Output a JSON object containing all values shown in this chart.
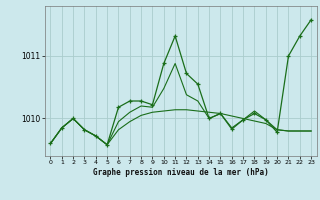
{
  "title": "Graphe pression niveau de la mer (hPa)",
  "background_color": "#cce8ec",
  "grid_color": "#aacccc",
  "line_color": "#1a6e1a",
  "xlim": [
    -0.5,
    23.5
  ],
  "ylim": [
    1009.4,
    1011.8
  ],
  "yticks": [
    1010,
    1011
  ],
  "xticks": [
    0,
    1,
    2,
    3,
    4,
    5,
    6,
    7,
    8,
    9,
    10,
    11,
    12,
    13,
    14,
    15,
    16,
    17,
    18,
    19,
    20,
    21,
    22,
    23
  ],
  "series1_x": [
    0,
    1,
    2,
    3,
    4,
    5,
    6,
    7,
    8,
    9,
    10,
    11,
    12,
    13,
    14,
    15,
    16,
    17,
    18,
    19,
    20,
    21,
    22,
    23
  ],
  "series1_y": [
    1009.6,
    1009.85,
    1010.0,
    1009.82,
    1009.72,
    1009.58,
    1010.18,
    1010.28,
    1010.28,
    1010.22,
    1010.88,
    1011.32,
    1010.72,
    1010.55,
    1010.0,
    1010.08,
    1009.83,
    1009.98,
    1010.08,
    1009.98,
    1009.78,
    1011.0,
    1011.32,
    1011.58
  ],
  "series2_x": [
    0,
    1,
    2,
    3,
    4,
    5,
    6,
    7,
    8,
    9,
    10,
    11,
    12,
    13,
    14,
    15,
    16,
    17,
    18,
    19,
    20,
    21,
    22,
    23
  ],
  "series2_y": [
    1009.6,
    1009.85,
    1010.0,
    1009.82,
    1009.72,
    1009.58,
    1009.82,
    1009.95,
    1010.05,
    1010.1,
    1010.12,
    1010.14,
    1010.14,
    1010.12,
    1010.1,
    1010.08,
    1010.04,
    1010.0,
    1009.96,
    1009.92,
    1009.82,
    1009.8,
    1009.8,
    1009.8
  ],
  "series3_x": [
    0,
    1,
    2,
    3,
    4,
    5,
    6,
    7,
    8,
    9,
    10,
    11,
    12,
    13,
    14,
    15,
    16,
    17,
    18,
    19,
    20,
    21,
    22,
    23
  ],
  "series3_y": [
    1009.6,
    1009.85,
    1010.0,
    1009.82,
    1009.72,
    1009.58,
    1009.95,
    1010.1,
    1010.2,
    1010.18,
    1010.48,
    1010.88,
    1010.38,
    1010.28,
    1010.0,
    1010.08,
    1009.85,
    1009.98,
    1010.12,
    1009.98,
    1009.82,
    1009.8,
    1009.8,
    1009.8
  ]
}
